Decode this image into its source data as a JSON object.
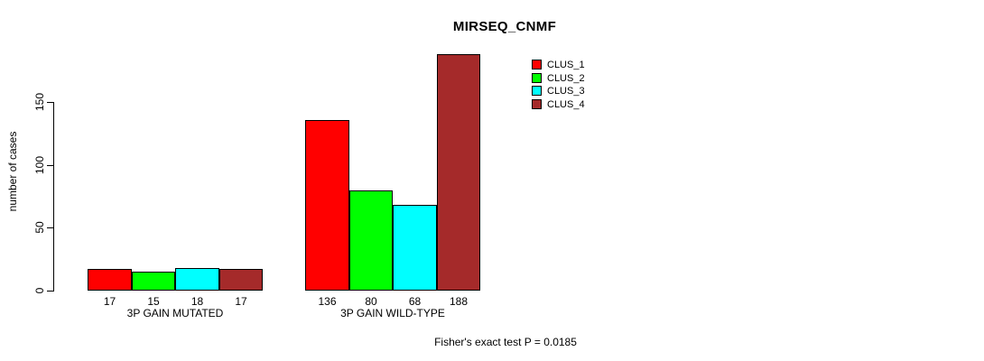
{
  "chart_data": {
    "type": "bar",
    "title": "MIRSEQ_CNMF",
    "ylabel": "number of cases",
    "xlabel": "",
    "ylim": [
      0,
      150
    ],
    "yticks": [
      0,
      50,
      100,
      150
    ],
    "grid": false,
    "legend_position": "top-right",
    "categories": [
      "3P GAIN MUTATED",
      "3P GAIN WILD-TYPE"
    ],
    "series": [
      {
        "name": "CLUS_1",
        "color": "#FF0000",
        "values": [
          17,
          136
        ]
      },
      {
        "name": "CLUS_2",
        "color": "#00FF00",
        "values": [
          15,
          80
        ]
      },
      {
        "name": "CLUS_3",
        "color": "#00FFFF",
        "values": [
          18,
          68
        ]
      },
      {
        "name": "CLUS_4",
        "color": "#A52A2A",
        "values": [
          17,
          188
        ]
      }
    ],
    "annotation": "Fisher's exact test P = 0.0185"
  },
  "colors": {
    "background": "#FFFFFF",
    "axis": "#000000",
    "text": "#000000",
    "bar_border": "#000000"
  }
}
